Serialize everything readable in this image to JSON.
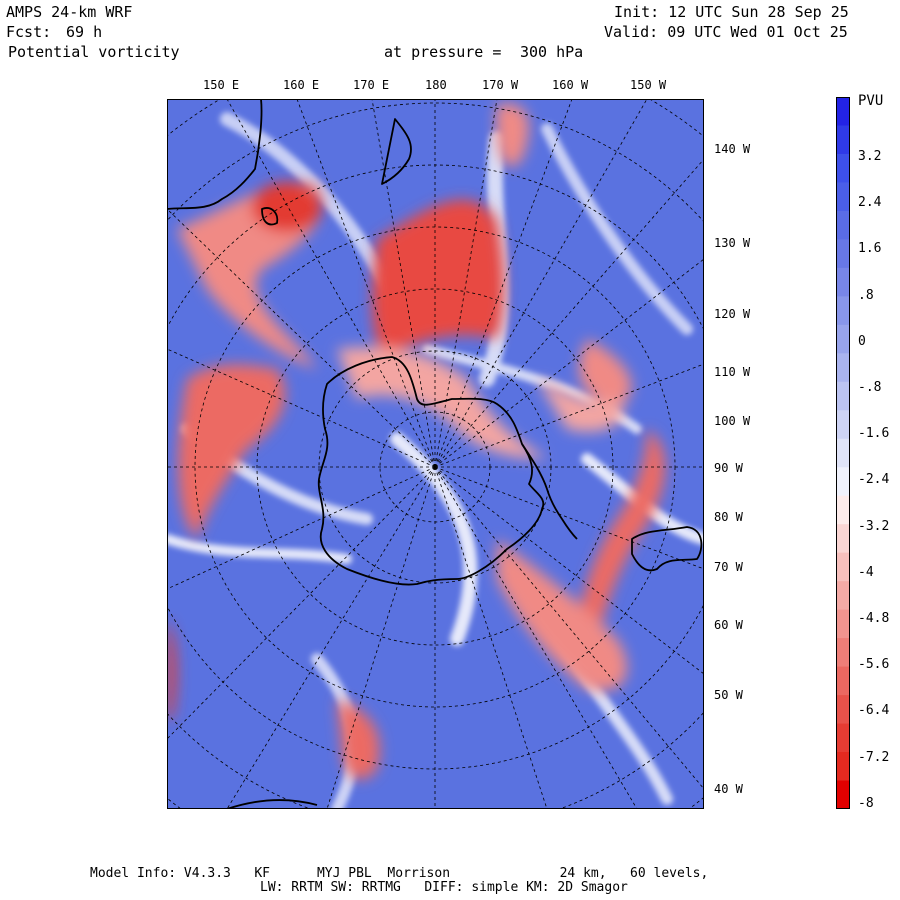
{
  "header": {
    "model": "AMPS 24-km WRF",
    "fcst_label": "Fcst:",
    "fcst_hours": "69 h",
    "field": "Potential vorticity",
    "pressure_label": "at pressure =",
    "pressure_value": "300 hPa",
    "init": "Init: 12 UTC Sun 28 Sep 25",
    "valid": "Valid: 09 UTC Wed 01 Oct 25"
  },
  "map": {
    "top_longitudes": [
      "150 E",
      "160 E",
      "170 E",
      "180",
      "170 W",
      "160 W",
      "150 W"
    ],
    "right_longitudes": [
      "140 W",
      "130 W",
      "120 W",
      "110 W",
      "100 W",
      "90 W",
      "80 W",
      "70 W",
      "60 W",
      "50 W",
      "40 W"
    ],
    "colors": {
      "land_line": "#000000",
      "grid_line": "#000000",
      "background_pv": "#5a72e0"
    }
  },
  "colorbar": {
    "unit": "PVU",
    "labels": [
      "3.2",
      "2.4",
      "1.6",
      ".8",
      "0",
      "-.8",
      "-1.6",
      "-2.4",
      "-3.2",
      "-4",
      "-4.8",
      "-5.6",
      "-6.4",
      "-7.2",
      "-8"
    ],
    "colors": [
      "#2323e6",
      "#2f3ae8",
      "#3d50ea",
      "#4a5ee8",
      "#5a6ce6",
      "#6878e6",
      "#7886e8",
      "#8896ea",
      "#98a4ec",
      "#aab4ef",
      "#bcc4f2",
      "#ced4f5",
      "#e0e4f8",
      "#f0f2fc",
      "#fdeceb",
      "#fad6d4",
      "#f7c0bd",
      "#f4aaa6",
      "#f1948f",
      "#ee7e78",
      "#eb6861",
      "#e8524a",
      "#e63c33",
      "#e42a20",
      "#e20000"
    ]
  },
  "footer": {
    "line1": "Model Info: V4.3.3   KF      MYJ PBL  Morrison              24 km,   60 levels,",
    "line2": "LW: RRTM SW: RRTMG   DIFF: simple KM: 2D Smagor"
  }
}
